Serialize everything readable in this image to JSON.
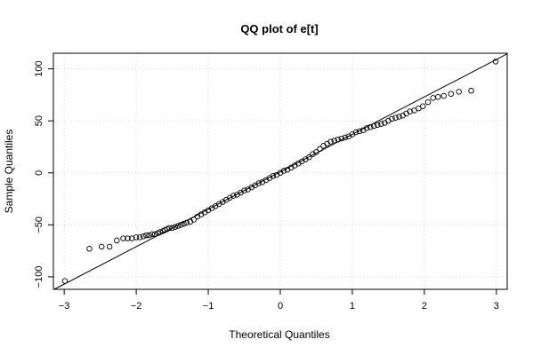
{
  "chart_data": {
    "type": "scatter",
    "title": "QQ plot of e[t]",
    "xlabel": "Theoretical Quantiles",
    "ylabel": "Sample Quantiles",
    "xlim": [
      -3.15,
      3.15
    ],
    "ylim": [
      -112,
      115
    ],
    "xticks": [
      -3,
      -2,
      -1,
      0,
      1,
      2,
      3
    ],
    "yticks": [
      -100,
      -50,
      0,
      50,
      100
    ],
    "xtick_labels": [
      "−3",
      "−2",
      "−1",
      "0",
      "1",
      "2",
      "3"
    ],
    "ytick_labels": [
      "−100",
      "−50",
      "0",
      "50",
      "100"
    ],
    "grid": true,
    "reference_line": {
      "slope": 36,
      "intercept": 1
    },
    "series": [
      {
        "points": [
          [
            -2.99,
            -104
          ],
          [
            -2.65,
            -73
          ],
          [
            -2.48,
            -71
          ],
          [
            -2.37,
            -71
          ],
          [
            -2.27,
            -65
          ],
          [
            -2.18,
            -63
          ],
          [
            -2.12,
            -63
          ],
          [
            -2.06,
            -63
          ],
          [
            -2.0,
            -62
          ],
          [
            -1.95,
            -62
          ],
          [
            -1.9,
            -61
          ],
          [
            -1.86,
            -60
          ],
          [
            -1.82,
            -60
          ],
          [
            -1.78,
            -59
          ],
          [
            -1.74,
            -59
          ],
          [
            -1.7,
            -58
          ],
          [
            -1.67,
            -57
          ],
          [
            -1.63,
            -56
          ],
          [
            -1.6,
            -55
          ],
          [
            -1.57,
            -54
          ],
          [
            -1.54,
            -53
          ],
          [
            -1.5,
            -53
          ],
          [
            -1.46,
            -52
          ],
          [
            -1.42,
            -51
          ],
          [
            -1.38,
            -50
          ],
          [
            -1.34,
            -49
          ],
          [
            -1.3,
            -48
          ],
          [
            -1.25,
            -47
          ],
          [
            -1.2,
            -45
          ],
          [
            -1.15,
            -42
          ],
          [
            -1.1,
            -40
          ],
          [
            -1.05,
            -38
          ],
          [
            -1.0,
            -36
          ],
          [
            -0.95,
            -34
          ],
          [
            -0.9,
            -32
          ],
          [
            -0.85,
            -30
          ],
          [
            -0.8,
            -28
          ],
          [
            -0.75,
            -26
          ],
          [
            -0.7,
            -24
          ],
          [
            -0.65,
            -22
          ],
          [
            -0.6,
            -21
          ],
          [
            -0.55,
            -19
          ],
          [
            -0.5,
            -17
          ],
          [
            -0.45,
            -16
          ],
          [
            -0.4,
            -14
          ],
          [
            -0.35,
            -12
          ],
          [
            -0.3,
            -10
          ],
          [
            -0.25,
            -9
          ],
          [
            -0.2,
            -7
          ],
          [
            -0.15,
            -5
          ],
          [
            -0.1,
            -3
          ],
          [
            -0.05,
            -2
          ],
          [
            0.0,
            0
          ],
          [
            0.05,
            2
          ],
          [
            0.1,
            3
          ],
          [
            0.15,
            5
          ],
          [
            0.2,
            7
          ],
          [
            0.25,
            9
          ],
          [
            0.3,
            11
          ],
          [
            0.35,
            13
          ],
          [
            0.4,
            15
          ],
          [
            0.45,
            18
          ],
          [
            0.5,
            20
          ],
          [
            0.55,
            23
          ],
          [
            0.6,
            26
          ],
          [
            0.65,
            28
          ],
          [
            0.7,
            30
          ],
          [
            0.75,
            31
          ],
          [
            0.8,
            32
          ],
          [
            0.85,
            33
          ],
          [
            0.9,
            34
          ],
          [
            0.95,
            35
          ],
          [
            1.0,
            37
          ],
          [
            1.05,
            39
          ],
          [
            1.1,
            40
          ],
          [
            1.15,
            41
          ],
          [
            1.2,
            43
          ],
          [
            1.25,
            44
          ],
          [
            1.3,
            45
          ],
          [
            1.35,
            46
          ],
          [
            1.4,
            47
          ],
          [
            1.45,
            48
          ],
          [
            1.5,
            50
          ],
          [
            1.55,
            52
          ],
          [
            1.6,
            53
          ],
          [
            1.65,
            54
          ],
          [
            1.7,
            55
          ],
          [
            1.75,
            57
          ],
          [
            1.8,
            59
          ],
          [
            1.86,
            60
          ],
          [
            1.92,
            62
          ],
          [
            1.98,
            64
          ],
          [
            2.05,
            68
          ],
          [
            2.12,
            72
          ],
          [
            2.19,
            73
          ],
          [
            2.27,
            74
          ],
          [
            2.37,
            76
          ],
          [
            2.48,
            78
          ],
          [
            2.65,
            79
          ],
          [
            2.99,
            107
          ]
        ]
      }
    ]
  }
}
